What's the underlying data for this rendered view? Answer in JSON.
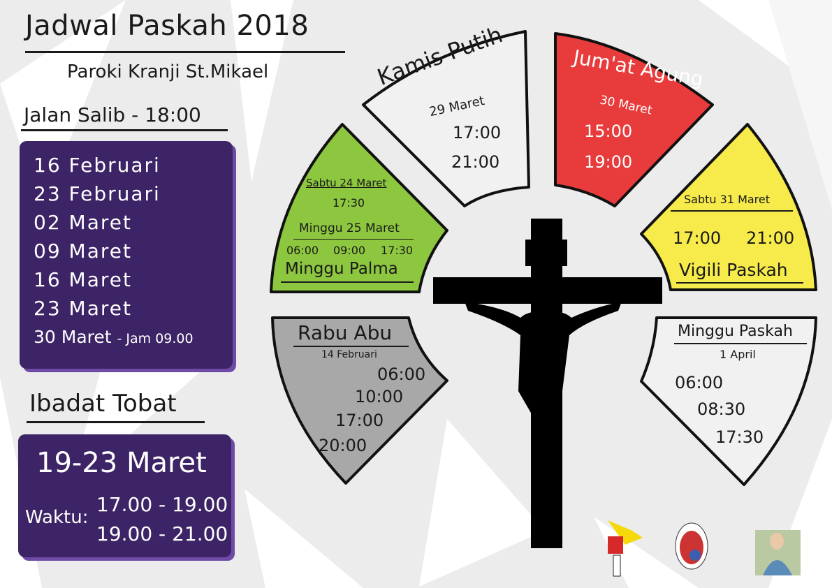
{
  "header": {
    "title": "Jadwal Paskah 2018",
    "subtitle": "Paroki Kranji St.Mikael"
  },
  "jalan_salib": {
    "heading": "Jalan Salib - 18:00",
    "dates": [
      "16 Februari",
      "23 Februari",
      "02 Maret",
      "09 Maret",
      "16 Maret",
      "23 Maret"
    ],
    "last_date": "30 Maret",
    "last_note": "- Jam 09.00",
    "box_color": "#3d2466"
  },
  "ibadat_tobat": {
    "heading": "Ibadat Tobat",
    "dates": "19-23 Maret",
    "time_label": "Waktu:",
    "times": [
      "17.00 - 19.00",
      "19.00 - 21.00"
    ]
  },
  "panels": {
    "kamis_putih": {
      "title": "Kamis Putih",
      "date": "29 Maret",
      "times": [
        "17:00",
        "21:00"
      ],
      "color": "#f1f1f1"
    },
    "jumat_agung": {
      "title": "Jum'at Agung",
      "date": "30 Maret",
      "times": [
        "15:00",
        "19:00"
      ],
      "color": "#e83b3b"
    },
    "minggu_palma": {
      "title": "Minggu Palma",
      "sat": "Sabtu 24 Maret",
      "sat_time": "17:30",
      "sun": "Minggu 25 Maret",
      "sun_times": [
        "06:00",
        "09:00",
        "17:30"
      ],
      "color": "#8dc63f"
    },
    "vigili_paskah": {
      "title": "Vigili Paskah",
      "date": "Sabtu 31 Maret",
      "times": [
        "17:00",
        "21:00"
      ],
      "color": "#f6eb4b"
    },
    "rabu_abu": {
      "title": "Rabu Abu",
      "date": "14 Februari",
      "times": [
        "06:00",
        "10:00",
        "17:00",
        "20:00"
      ],
      "color": "#a8a8a8"
    },
    "minggu_paskah": {
      "title": "Minggu Paskah",
      "date": "1 April",
      "times": [
        "06:00",
        "08:30",
        "17:30"
      ],
      "color": "#f1f1f1"
    }
  },
  "logos": [
    "st-mikael-logo",
    "pancasila-logo",
    "saint-image"
  ]
}
